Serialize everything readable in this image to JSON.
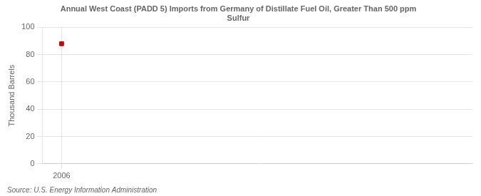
{
  "chart_data": {
    "type": "scatter",
    "title": "Annual West Coast (PADD 5) Imports from Germany of Distillate Fuel Oil, Greater Than 500 ppm\nSulfur",
    "ylabel": "Thousand Barrels",
    "annotation": "Source: U.S. Energy Information Administration",
    "x": [
      2006
    ],
    "values": [
      88
    ],
    "color": "#cc0000",
    "marker": "square",
    "xlim": [
      2005.3,
      2021
    ],
    "xticks": [
      2006
    ],
    "ylim": [
      0,
      100
    ],
    "yticks": [
      0,
      20,
      40,
      60,
      80,
      100
    ],
    "grid": true
  }
}
